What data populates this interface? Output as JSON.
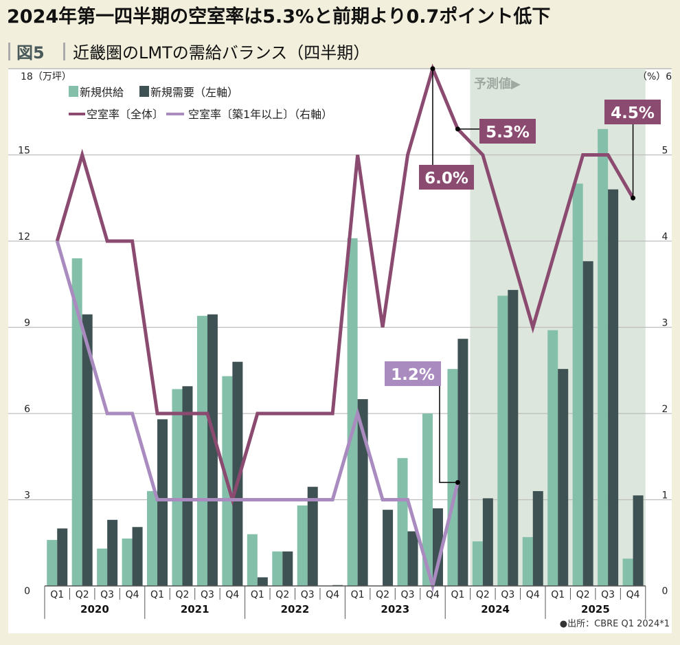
{
  "title": "2024年第一四半期の空室率は5.3%と前期より0.7ポイント低下",
  "subtitle": {
    "fig_label": "図5",
    "text": "近畿圏のLMTの需給バランス（四半期）"
  },
  "source": "●出所：CBRE Q1 2024*1",
  "forecast_label": "予測値▶",
  "colors": {
    "supply": "#84bfaa",
    "demand": "#3f5253",
    "vacancy_total": "#8b4a70",
    "vacancy_grade": "#a98bbf",
    "forecast_bg": "#dde6dc",
    "frame": "#f2efdc"
  },
  "chart_data": {
    "type": "bar+line",
    "title": "近畿圏のLMTの需給バランス（四半期）",
    "left_axis": {
      "label": "18（万坪）",
      "ylim": [
        0,
        18
      ],
      "ticks": [
        "0",
        "3",
        "6",
        "9",
        "12",
        "15",
        "18"
      ]
    },
    "right_axis": {
      "label": "（%）6",
      "ylim": [
        0,
        6
      ],
      "ticks": [
        "0",
        "1",
        "2",
        "3",
        "4",
        "5"
      ]
    },
    "years": [
      "2020",
      "2021",
      "2022",
      "2023",
      "2024",
      "2025"
    ],
    "quarters": [
      "Q1",
      "Q2",
      "Q3",
      "Q4"
    ],
    "forecast_from_index": 17,
    "legend": {
      "supply": "新規供給",
      "demand": "新規需要（左軸）",
      "vacancy_total": "空室率〔全体〕",
      "vacancy_grade": "空室率〔築1年以上〕（右軸）"
    },
    "series": [
      {
        "name": "新規供給",
        "axis": "left",
        "type": "bar",
        "values": [
          1.6,
          11.4,
          1.3,
          1.65,
          3.3,
          6.85,
          9.4,
          7.3,
          1.8,
          1.2,
          2.8,
          0,
          12.1,
          0,
          4.45,
          6.0,
          7.55,
          1.55,
          10.1,
          1.7,
          8.9,
          14.0,
          15.9,
          0.95
        ]
      },
      {
        "name": "新規需要",
        "axis": "left",
        "type": "bar",
        "values": [
          2.0,
          9.45,
          2.3,
          2.05,
          5.8,
          6.95,
          9.45,
          7.8,
          0.3,
          1.2,
          3.45,
          0.03,
          6.5,
          2.65,
          1.9,
          2.7,
          8.6,
          3.05,
          10.3,
          3.3,
          7.55,
          11.3,
          13.8,
          3.15
        ]
      },
      {
        "name": "空室率〔全体〕",
        "axis": "right",
        "type": "line",
        "values": [
          4,
          5,
          4,
          4,
          2,
          2,
          2,
          1,
          2,
          2,
          2,
          2,
          5,
          3,
          5,
          6,
          5.3,
          5,
          4,
          3,
          4,
          5,
          5,
          4.5
        ]
      },
      {
        "name": "空室率〔築1年以上〕",
        "axis": "right",
        "type": "line",
        "values": [
          4,
          3,
          2,
          2,
          1,
          1,
          1,
          1,
          1,
          1,
          1,
          1,
          2,
          1,
          1,
          0,
          1.2
        ]
      }
    ],
    "annotations": [
      {
        "text": "6.0%",
        "series": 2,
        "index": 15
      },
      {
        "text": "5.3%",
        "series": 2,
        "index": 16
      },
      {
        "text": "4.5%",
        "series": 2,
        "index": 23
      },
      {
        "text": "1.2%",
        "series": 3,
        "index": 16
      }
    ]
  }
}
